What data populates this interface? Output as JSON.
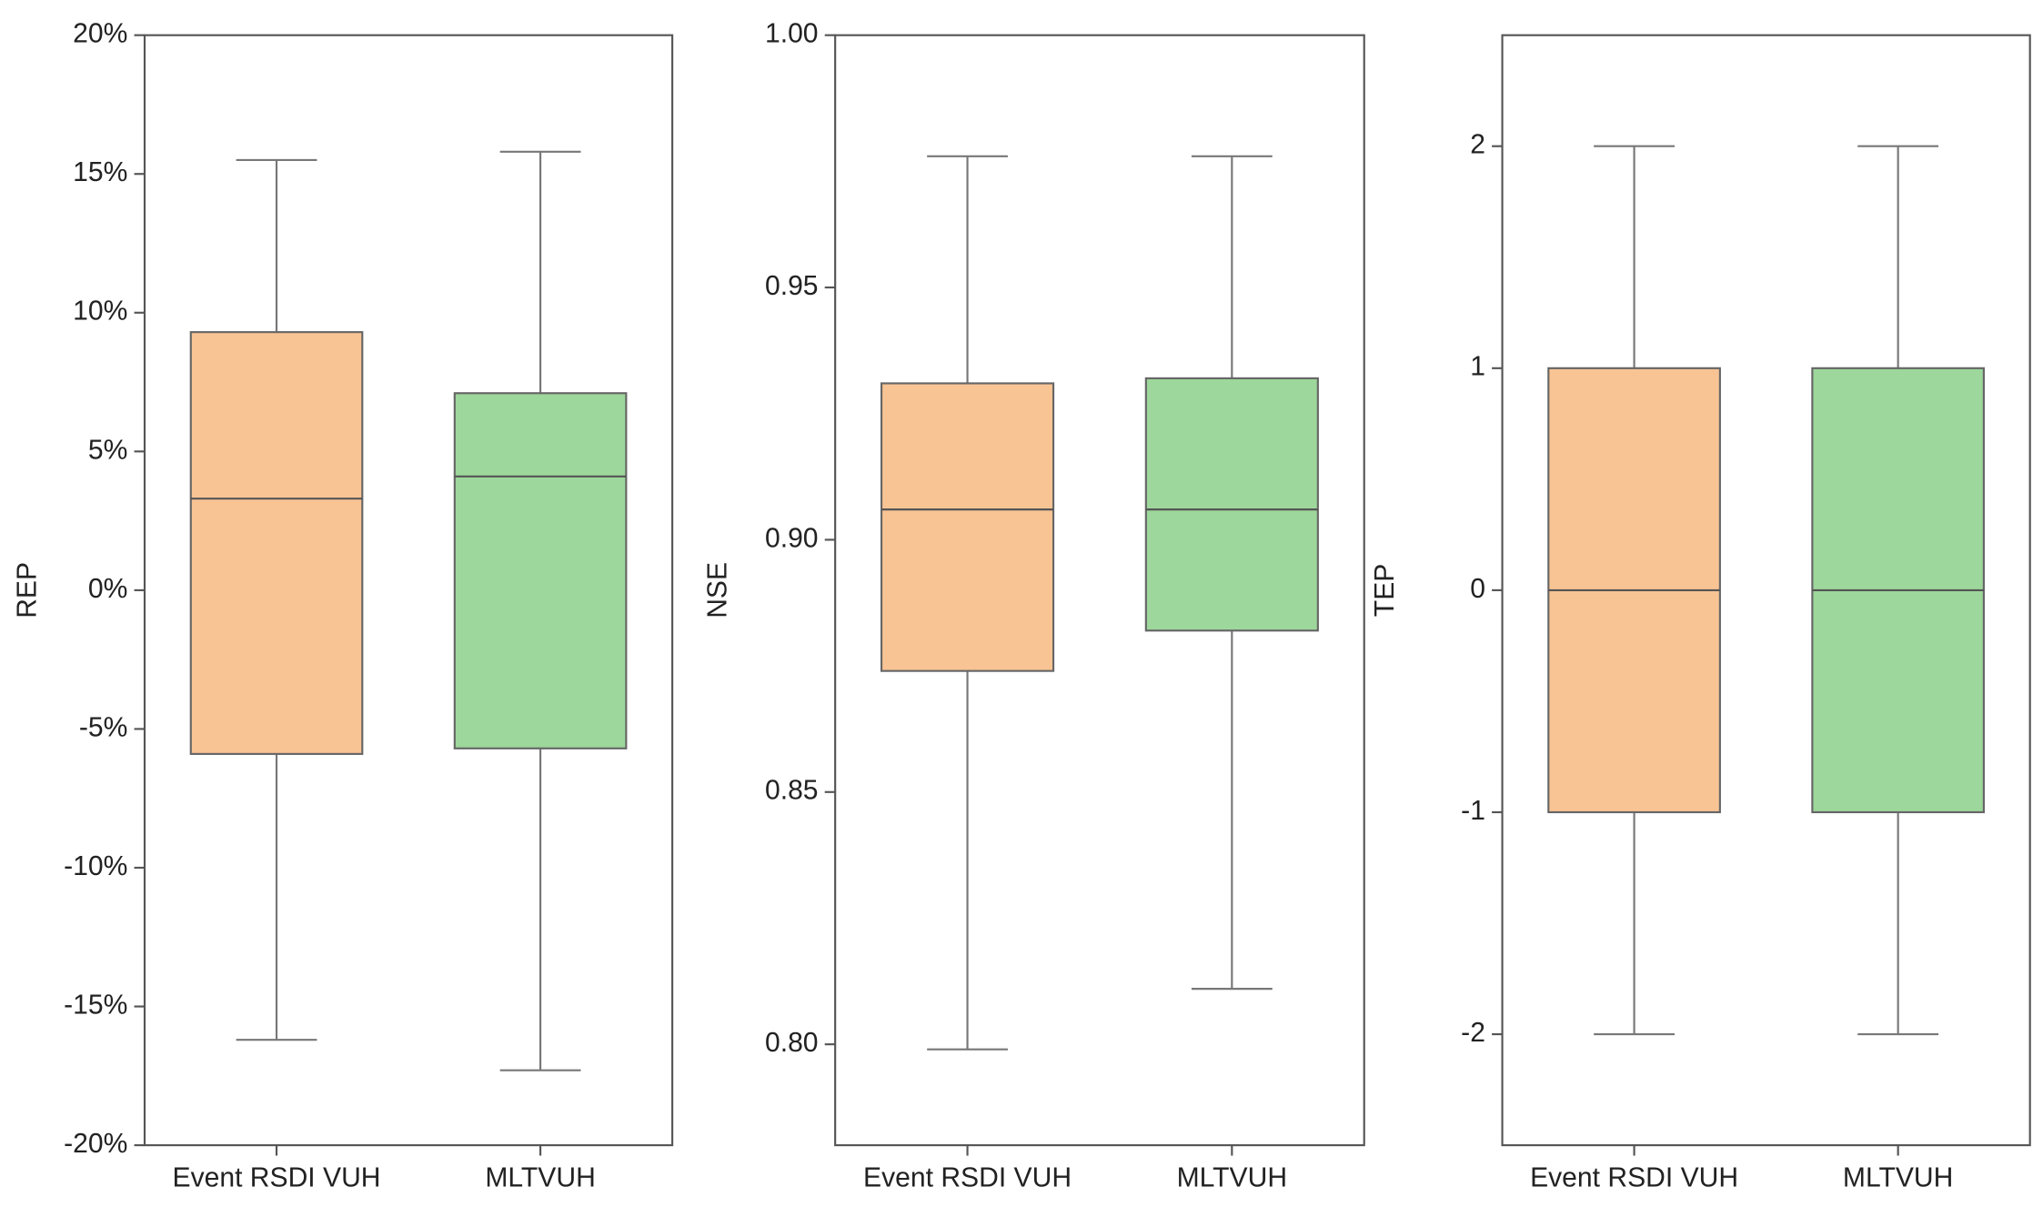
{
  "chart_data": [
    {
      "type": "box",
      "y_label": "REP",
      "categories": [
        "Event RSDI VUH",
        "MLTVUH"
      ],
      "boxes": [
        {
          "whisker_low": -16.2,
          "q1": -5.9,
          "median": 3.3,
          "q3": 9.3,
          "whisker_high": 15.5,
          "color": "#f9c494"
        },
        {
          "whisker_low": -17.3,
          "q1": -5.7,
          "median": 4.1,
          "q3": 7.1,
          "whisker_high": 15.8,
          "color": "#9dd79b"
        }
      ],
      "ylim": [
        -20,
        20
      ],
      "yticks": [
        {
          "value": -20,
          "label": "-20%"
        },
        {
          "value": -15,
          "label": "-15%"
        },
        {
          "value": -10,
          "label": "-10%"
        },
        {
          "value": -5,
          "label": "-5%"
        },
        {
          "value": 0,
          "label": "0%"
        },
        {
          "value": 5,
          "label": "5%"
        },
        {
          "value": 10,
          "label": "10%"
        },
        {
          "value": 15,
          "label": "15%"
        },
        {
          "value": 20,
          "label": "20%"
        }
      ]
    },
    {
      "type": "box",
      "y_label": "NSE",
      "categories": [
        "Event RSDI VUH",
        "MLTVUH"
      ],
      "boxes": [
        {
          "whisker_low": 0.799,
          "q1": 0.874,
          "median": 0.906,
          "q3": 0.931,
          "whisker_high": 0.976,
          "color": "#f9c494"
        },
        {
          "whisker_low": 0.811,
          "q1": 0.882,
          "median": 0.906,
          "q3": 0.932,
          "whisker_high": 0.976,
          "color": "#9dd79b"
        }
      ],
      "ylim": [
        0.78,
        1.0
      ],
      "yticks": [
        {
          "value": 0.8,
          "label": "0.80"
        },
        0.85,
        {
          "value": 0.9,
          "label": "0.90"
        },
        0.95,
        {
          "value": 1.0,
          "label": "1.00"
        }
      ]
    },
    {
      "type": "box",
      "y_label": "TEP",
      "categories": [
        "Event RSDI VUH",
        "MLTVUH"
      ],
      "boxes": [
        {
          "whisker_low": -2,
          "q1": -1,
          "median": 0,
          "q3": 1,
          "whisker_high": 2,
          "color": "#f9c494"
        },
        {
          "whisker_low": -2,
          "q1": -1,
          "median": 0,
          "q3": 1,
          "whisker_high": 2,
          "color": "#9dd79b"
        }
      ],
      "ylim": [
        -2.5,
        2.5
      ],
      "yticks": [
        -2,
        -1,
        0,
        1,
        2
      ]
    }
  ]
}
